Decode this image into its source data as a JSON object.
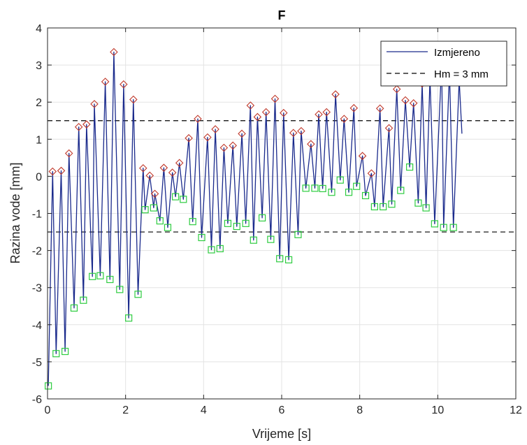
{
  "chart_data": {
    "type": "line",
    "title": "F",
    "xlabel": "Vrijeme [s]",
    "ylabel": "Razina vode [mm]",
    "xlim": [
      0,
      12
    ],
    "ylim": [
      -6,
      4
    ],
    "xticks": [
      "0",
      "2",
      "4",
      "6",
      "8",
      "10",
      "12"
    ],
    "yticks": [
      "-6",
      "-5",
      "-4",
      "-3",
      "-2",
      "-1",
      "0",
      "1",
      "2",
      "3",
      "4"
    ],
    "grid": true,
    "legend_position": "top-right",
    "legend": [
      "Izmjereno",
      "Hm = 3 mm"
    ],
    "thresholds": [
      1.5,
      -1.5
    ],
    "colors": {
      "series": "#1a2a8c",
      "peak": "#c0392b",
      "trough": "#2ecc40",
      "threshold": "#000000"
    },
    "peaks": [
      [
        0.13,
        0.13
      ],
      [
        0.35,
        0.15
      ],
      [
        0.55,
        0.62
      ],
      [
        0.8,
        1.33
      ],
      [
        1.0,
        1.4
      ],
      [
        1.2,
        1.95
      ],
      [
        1.48,
        2.55
      ],
      [
        1.7,
        3.35
      ],
      [
        1.95,
        2.48
      ],
      [
        2.2,
        2.07
      ],
      [
        2.45,
        0.22
      ],
      [
        2.62,
        0.02
      ],
      [
        2.75,
        -0.47
      ],
      [
        2.98,
        0.23
      ],
      [
        3.2,
        0.1
      ],
      [
        3.38,
        0.36
      ],
      [
        3.62,
        1.03
      ],
      [
        3.85,
        1.55
      ],
      [
        4.1,
        1.05
      ],
      [
        4.3,
        1.27
      ],
      [
        4.52,
        0.77
      ],
      [
        4.75,
        0.83
      ],
      [
        4.98,
        1.15
      ],
      [
        5.2,
        1.91
      ],
      [
        5.38,
        1.6
      ],
      [
        5.6,
        1.73
      ],
      [
        5.83,
        2.09
      ],
      [
        6.05,
        1.71
      ],
      [
        6.3,
        1.17
      ],
      [
        6.5,
        1.22
      ],
      [
        6.75,
        0.87
      ],
      [
        6.95,
        1.67
      ],
      [
        7.15,
        1.73
      ],
      [
        7.38,
        2.21
      ],
      [
        7.6,
        1.55
      ],
      [
        7.85,
        1.84
      ],
      [
        8.07,
        0.55
      ],
      [
        8.3,
        0.08
      ],
      [
        8.52,
        1.83
      ],
      [
        8.75,
        1.3
      ],
      [
        8.95,
        2.35
      ],
      [
        9.17,
        2.05
      ],
      [
        9.38,
        1.97
      ],
      [
        9.6,
        2.5
      ],
      [
        9.8,
        2.65
      ],
      [
        10.1,
        3.05
      ],
      [
        10.3,
        2.85
      ],
      [
        10.55,
        2.6
      ]
    ],
    "troughs": [
      [
        0.02,
        -5.65
      ],
      [
        0.22,
        -4.78
      ],
      [
        0.45,
        -4.72
      ],
      [
        0.68,
        -3.55
      ],
      [
        0.92,
        -3.34
      ],
      [
        1.15,
        -2.7
      ],
      [
        1.35,
        -2.68
      ],
      [
        1.6,
        -2.78
      ],
      [
        1.85,
        -3.05
      ],
      [
        2.08,
        -3.82
      ],
      [
        2.32,
        -3.18
      ],
      [
        2.5,
        -0.9
      ],
      [
        2.72,
        -0.85
      ],
      [
        2.88,
        -1.2
      ],
      [
        3.08,
        -1.38
      ],
      [
        3.28,
        -0.55
      ],
      [
        3.48,
        -0.62
      ],
      [
        3.72,
        -1.22
      ],
      [
        3.95,
        -1.65
      ],
      [
        4.2,
        -1.98
      ],
      [
        4.42,
        -1.95
      ],
      [
        4.62,
        -1.27
      ],
      [
        4.85,
        -1.35
      ],
      [
        5.08,
        -1.27
      ],
      [
        5.28,
        -1.72
      ],
      [
        5.5,
        -1.12
      ],
      [
        5.72,
        -1.7
      ],
      [
        5.95,
        -2.22
      ],
      [
        6.18,
        -2.25
      ],
      [
        6.42,
        -1.57
      ],
      [
        6.62,
        -0.32
      ],
      [
        6.85,
        -0.32
      ],
      [
        7.05,
        -0.33
      ],
      [
        7.28,
        -0.43
      ],
      [
        7.5,
        -0.1
      ],
      [
        7.72,
        -0.43
      ],
      [
        7.92,
        -0.27
      ],
      [
        8.15,
        -0.52
      ],
      [
        8.38,
        -0.82
      ],
      [
        8.6,
        -0.82
      ],
      [
        8.82,
        -0.75
      ],
      [
        9.05,
        -0.38
      ],
      [
        9.28,
        0.25
      ],
      [
        9.5,
        -0.72
      ],
      [
        9.7,
        -0.85
      ],
      [
        9.92,
        -1.28
      ],
      [
        10.15,
        -1.38
      ],
      [
        10.4,
        -1.38
      ]
    ],
    "end_point": [
      10.62,
      1.15
    ]
  }
}
